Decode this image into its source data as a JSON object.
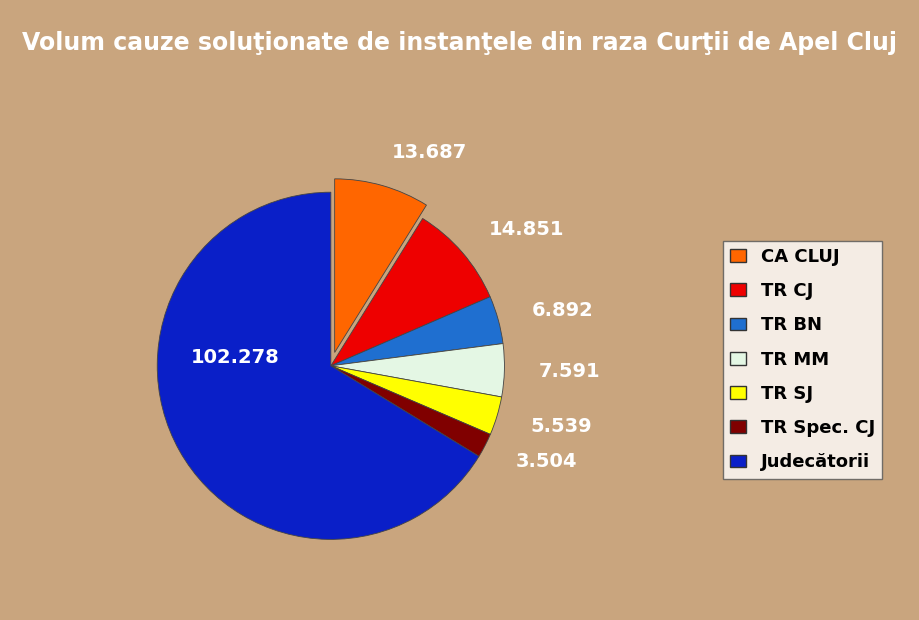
{
  "chart_data": {
    "type": "pie",
    "title": "Volum cauze soluţionate de instanţele din raza Curţii de Apel Cluj",
    "categories": [
      "CA CLUJ",
      "TR CJ",
      "TR BN",
      "TR MM",
      "TR SJ",
      "TR Spec. CJ",
      "Judecătorii"
    ],
    "values": [
      13687,
      14851,
      6892,
      7591,
      5539,
      3504,
      102278
    ],
    "value_labels": [
      "13.687",
      "14.851",
      "6.892",
      "7.591",
      "5.539",
      "3.504",
      "102.278"
    ],
    "colors": [
      "#FF6600",
      "#EE0000",
      "#1F6FD0",
      "#E4F7E4",
      "#FFFF00",
      "#800000",
      "#0A1FC8"
    ],
    "data_labels": true,
    "legend": "right"
  }
}
